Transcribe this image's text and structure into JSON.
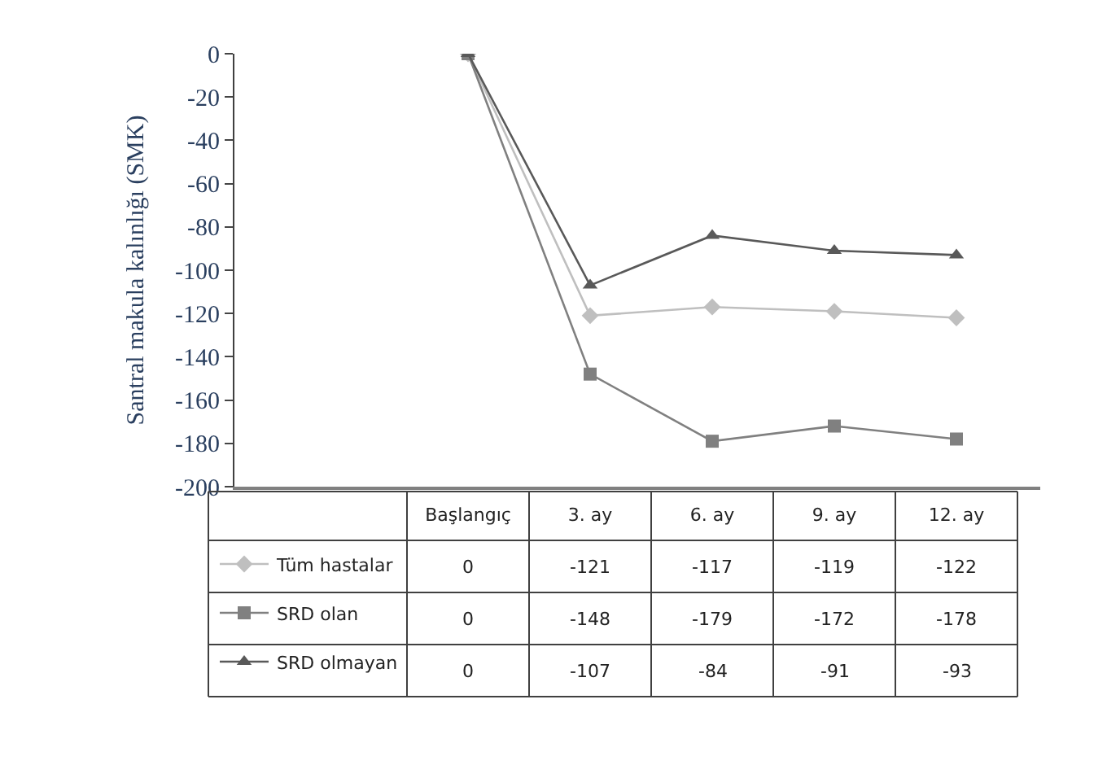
{
  "chart_data": {
    "type": "line",
    "ylabel": "Santral makula kalınlığı (SMK)",
    "categories": [
      "Başlangıç",
      "3. ay",
      "6. ay",
      "9. ay",
      "12. ay"
    ],
    "series": [
      {
        "name": "Tüm hastalar",
        "color": "#bfbfbf",
        "marker": "diamond",
        "values": [
          0,
          -121,
          -117,
          -119,
          -122
        ]
      },
      {
        "name": "SRD olan",
        "color": "#808080",
        "marker": "square",
        "values": [
          0,
          -148,
          -179,
          -172,
          -178
        ]
      },
      {
        "name": "SRD olmayan",
        "color": "#595959",
        "marker": "triangle",
        "values": [
          0,
          -107,
          -84,
          -91,
          -93
        ]
      }
    ],
    "ylim": [
      -200,
      0
    ],
    "yticks": [
      0,
      -20,
      -40,
      -60,
      -80,
      -100,
      -120,
      -140,
      -160,
      -180,
      -200
    ],
    "legend": "bottom left",
    "data_labels": true
  }
}
